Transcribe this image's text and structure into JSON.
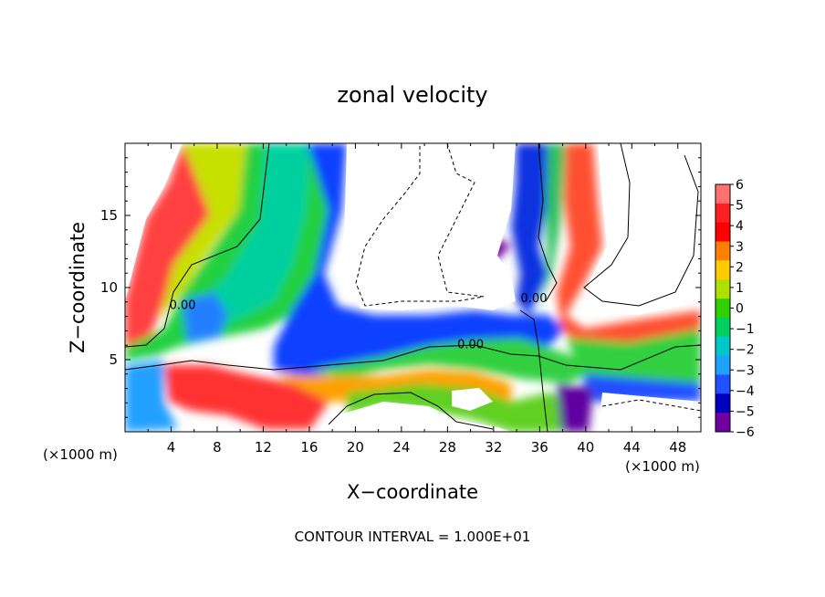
{
  "chart_data": {
    "type": "heatmap",
    "title": "zonal velocity",
    "xlabel": "X−coordinate",
    "ylabel": "Z−coordinate",
    "x_unit_left": "(×1000 m)",
    "x_unit_right": "(×1000 m)",
    "footer": "CONTOUR INTERVAL = 1.000E+01",
    "xlim": [
      0,
      50
    ],
    "ylim": [
      0,
      20
    ],
    "x_ticks": [
      4,
      8,
      12,
      16,
      20,
      24,
      28,
      32,
      36,
      40,
      44,
      48
    ],
    "y_ticks": [
      5,
      10,
      15
    ],
    "contour_labels": [
      {
        "text": "0.00",
        "x": 5,
        "z": 8.5
      },
      {
        "text": "0.00",
        "x": 30,
        "z": 5.8
      },
      {
        "text": "0.00",
        "x": 35.5,
        "z": 9.0
      }
    ],
    "colorbar": {
      "values": [
        6,
        5,
        4,
        3,
        2,
        1,
        0,
        -1,
        -2,
        -3,
        -4,
        -5,
        -6
      ],
      "labels": [
        "6",
        "5",
        "4",
        "3",
        "2",
        "1",
        "0",
        "−1",
        "−2",
        "−3",
        "−4",
        "−5",
        "−6"
      ],
      "colors": [
        "#ff7070",
        "#ff2020",
        "#ff0000",
        "#ff8000",
        "#ffcc00",
        "#b0e000",
        "#30d000",
        "#00d060",
        "#00c8c8",
        "#20a0ff",
        "#2050ff",
        "#0000c0",
        "#7000a0"
      ]
    },
    "grid": false
  }
}
